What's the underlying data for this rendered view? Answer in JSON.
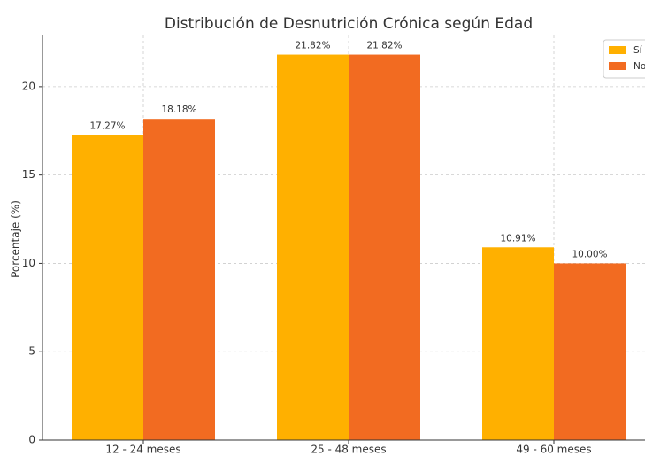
{
  "chart_data": {
    "type": "bar",
    "title": "Distribución de Desnutrición Crónica según Edad",
    "ylabel": "Porcentaje (%)",
    "categories": [
      "12 - 24 meses",
      "25 - 48 meses",
      "49 - 60 meses"
    ],
    "series": [
      {
        "name": "Sí",
        "color": "#ffb000",
        "values": [
          17.27,
          21.82,
          10.91
        ],
        "value_labels": [
          "17.27%",
          "21.82%",
          "10.91%"
        ]
      },
      {
        "name": "No",
        "color": "#f26b21",
        "values": [
          18.18,
          21.82,
          10.0
        ],
        "value_labels": [
          "18.18%",
          "21.82%",
          "10.00%"
        ]
      }
    ],
    "ylim": [
      0,
      22.9
    ],
    "yticks": [
      0,
      5,
      10,
      15,
      20
    ],
    "grid": true,
    "legend": "upper right"
  }
}
